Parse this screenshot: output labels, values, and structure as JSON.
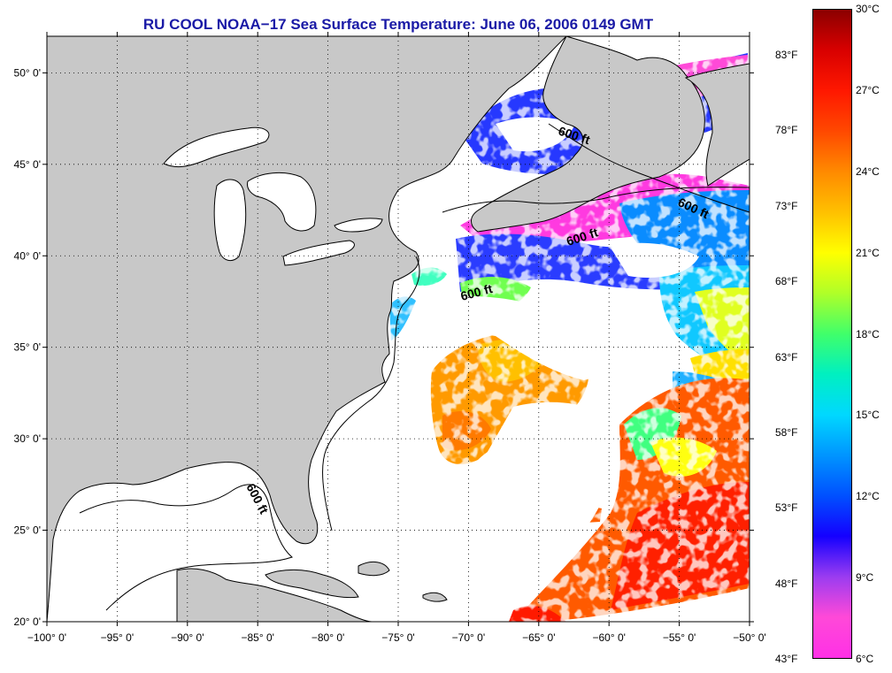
{
  "title": "RU COOL  NOAA−17  Sea Surface Temperature:  June 06, 2006 0149 GMT",
  "colors": {
    "title": "#1a1aa6",
    "land": "#c8c8c8",
    "water_cloud": "#ffffff",
    "frame": "#000000",
    "colorbar_stops": [
      "#ff30e6",
      "#ff49d8",
      "#9b3cf0",
      "#1400ff",
      "#0050ff",
      "#0095ff",
      "#00d8ff",
      "#00f0c0",
      "#40ff6a",
      "#b0ff28",
      "#ffff00",
      "#ffc000",
      "#ff8a00",
      "#ff4800",
      "#ff1800",
      "#d80000",
      "#8b0000"
    ]
  },
  "map": {
    "lon_range": [
      -100,
      -50
    ],
    "lat_range": [
      20,
      52
    ],
    "lon_ticks": [
      {
        "value": -100,
        "label": "−100° 0'"
      },
      {
        "value": -95,
        "label": "−95° 0'"
      },
      {
        "value": -90,
        "label": "−90° 0'"
      },
      {
        "value": -85,
        "label": "−85° 0'"
      },
      {
        "value": -80,
        "label": "−80° 0'"
      },
      {
        "value": -75,
        "label": "−75° 0'"
      },
      {
        "value": -70,
        "label": "−70° 0'"
      },
      {
        "value": -65,
        "label": "−65° 0'"
      },
      {
        "value": -60,
        "label": "−60° 0'"
      },
      {
        "value": -55,
        "label": "−55° 0'"
      },
      {
        "value": -50,
        "label": "−50° 0'"
      }
    ],
    "lat_ticks": [
      {
        "value": 20,
        "label": "20° 0'"
      },
      {
        "value": 25,
        "label": "25° 0'"
      },
      {
        "value": 30,
        "label": "30° 0'"
      },
      {
        "value": 35,
        "label": "35° 0'"
      },
      {
        "value": 40,
        "label": "40° 0'"
      },
      {
        "value": 45,
        "label": "45° 0'"
      },
      {
        "value": 50,
        "label": "50° 0'"
      }
    ],
    "contour_label": "600 ft"
  },
  "colorbar": {
    "celsius_labels": [
      "30°C",
      "27°C",
      "24°C",
      "21°C",
      "18°C",
      "15°C",
      "12°C",
      "9°C",
      "6°C"
    ],
    "fahrenheit_labels": [
      "83°F",
      "78°F",
      "73°F",
      "68°F",
      "63°F",
      "58°F",
      "53°F",
      "48°F",
      "43°F"
    ]
  }
}
